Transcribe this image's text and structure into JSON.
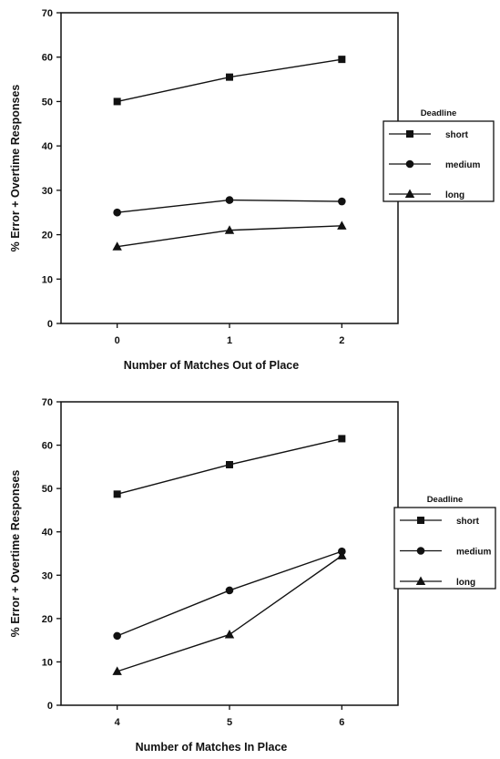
{
  "chart_data": [
    {
      "type": "line",
      "title": "",
      "xlabel": "Number of Matches Out of Place",
      "ylabel": "% Error + Overtime Responses",
      "x": [
        0,
        1,
        2
      ],
      "x_tick_labels": [
        "0",
        "1",
        "2"
      ],
      "xlim": [
        -0.5,
        2.5
      ],
      "ylim": [
        0,
        70
      ],
      "y_ticks": [
        0,
        10,
        20,
        30,
        40,
        50,
        60,
        70
      ],
      "y_tick_labels": [
        "0",
        "10",
        "20",
        "30",
        "40",
        "50",
        "60",
        "70"
      ],
      "grid": false,
      "legend": {
        "title": "Deadline",
        "position": "right"
      },
      "series": [
        {
          "name": "short",
          "marker": "square",
          "values": [
            50,
            55.5,
            59.5
          ]
        },
        {
          "name": "medium",
          "marker": "circle",
          "values": [
            25,
            27.8,
            27.5
          ]
        },
        {
          "name": "long",
          "marker": "triangle",
          "values": [
            17.3,
            21,
            22
          ]
        }
      ]
    },
    {
      "type": "line",
      "title": "",
      "xlabel": "Number of Matches In Place",
      "ylabel": "% Error + Overtime Responses",
      "x": [
        4,
        5,
        6
      ],
      "x_tick_labels": [
        "4",
        "5",
        "6"
      ],
      "xlim": [
        3.5,
        6.5
      ],
      "ylim": [
        0,
        70
      ],
      "y_ticks": [
        0,
        10,
        20,
        30,
        40,
        50,
        60,
        70
      ],
      "y_tick_labels": [
        "0",
        "10",
        "20",
        "30",
        "40",
        "50",
        "60",
        "70"
      ],
      "grid": false,
      "legend": {
        "title": "Deadline",
        "position": "right"
      },
      "series": [
        {
          "name": "short",
          "marker": "square",
          "values": [
            48.7,
            55.5,
            61.5
          ]
        },
        {
          "name": "medium",
          "marker": "circle",
          "values": [
            16,
            26.5,
            35.5
          ]
        },
        {
          "name": "long",
          "marker": "triangle",
          "values": [
            7.8,
            16.3,
            34.5
          ]
        }
      ]
    }
  ]
}
